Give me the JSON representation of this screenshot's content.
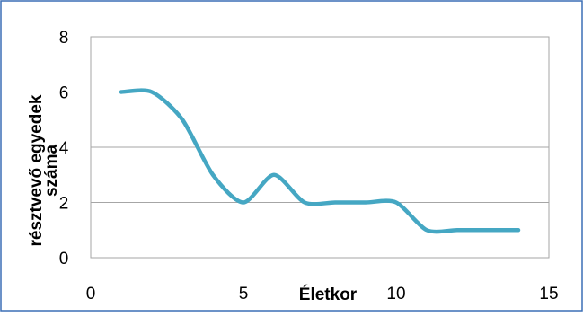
{
  "chart_data": {
    "type": "line",
    "title": "",
    "xlabel": "Életkor",
    "ylabel_lines": [
      "résztvevő egyedek",
      "száma"
    ],
    "xlim": [
      0,
      15
    ],
    "ylim": [
      0,
      8
    ],
    "xticks": [
      0,
      5,
      10,
      15
    ],
    "yticks": [
      0,
      2,
      4,
      6,
      8
    ],
    "grid": {
      "horizontal": true,
      "vertical": false
    },
    "legend": "none",
    "series": [
      {
        "color": "#45a7c3",
        "x": [
          1,
          2,
          3,
          4,
          5,
          6,
          7,
          8,
          9,
          10,
          11,
          12,
          13,
          14
        ],
        "y": [
          6,
          6,
          5,
          3,
          2,
          3,
          2,
          2,
          2,
          2,
          1,
          1,
          1,
          1
        ]
      }
    ]
  },
  "colors": {
    "frame_border": "#3b6fb6",
    "plot_border": "#a6a6a6",
    "grid": "#a6a6a6",
    "line": "#45a7c3",
    "text": "#000000"
  }
}
